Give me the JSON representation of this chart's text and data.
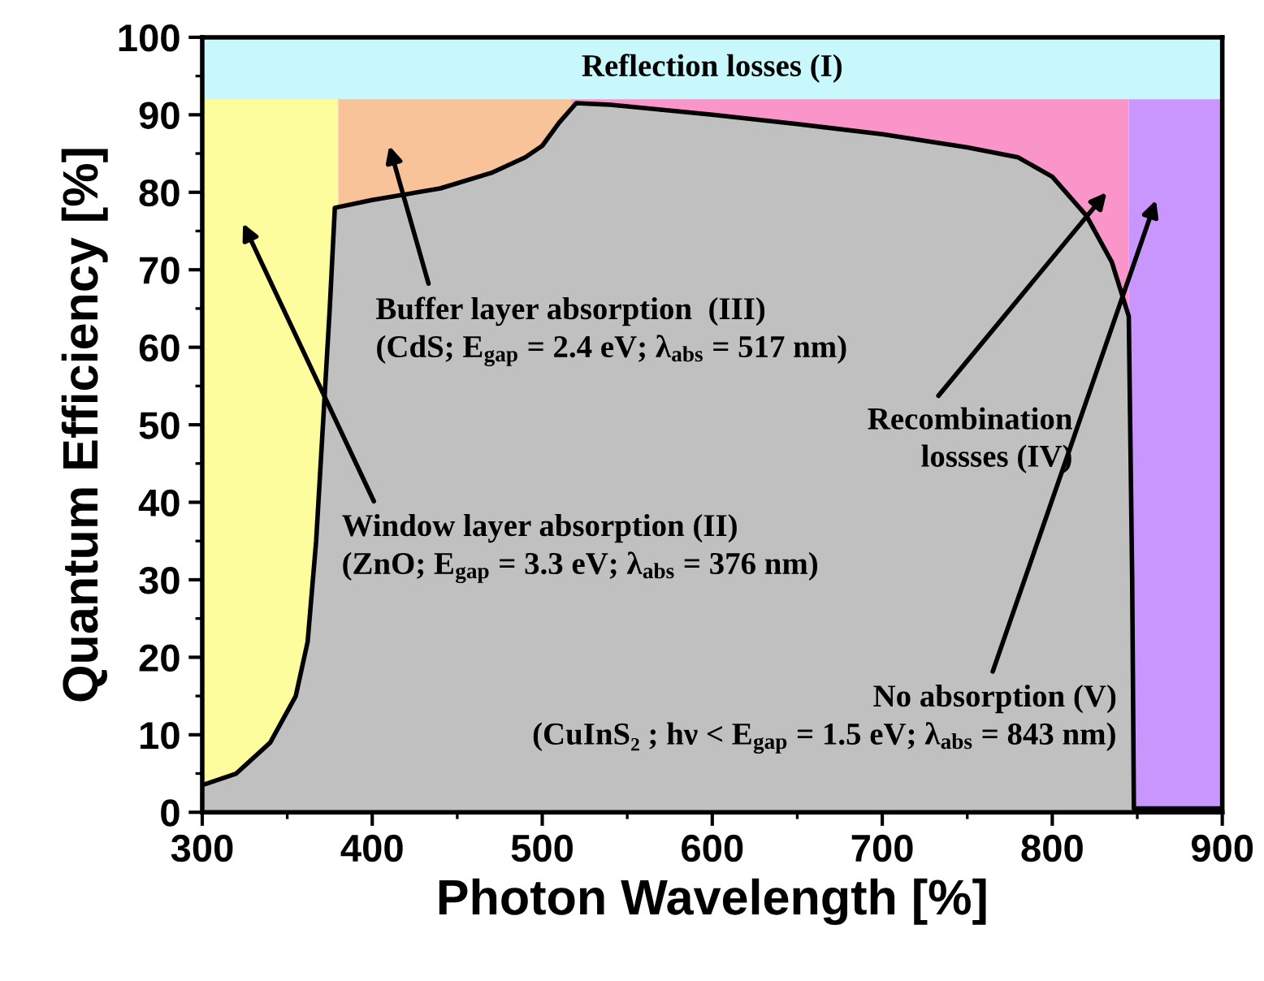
{
  "chart_data": {
    "type": "area",
    "xlabel": "Photon Wavelength [%]",
    "ylabel": "Quantum Efficiency [%]",
    "xlim": [
      300,
      900
    ],
    "xticks": [
      300,
      400,
      500,
      600,
      700,
      800,
      900
    ],
    "ylim": [
      0,
      100
    ],
    "yticks": [
      0,
      10,
      20,
      30,
      40,
      50,
      60,
      70,
      80,
      90,
      100
    ],
    "grid": false,
    "x": [
      300,
      320,
      340,
      355,
      362,
      367,
      371,
      375,
      378,
      400,
      440,
      470,
      490,
      500,
      510,
      520,
      540,
      600,
      650,
      700,
      750,
      780,
      800,
      820,
      835,
      845,
      847,
      848,
      900
    ],
    "series": [
      {
        "color": "#c0c0c0",
        "values": [
          3.5,
          5,
          9,
          15,
          22,
          35,
          50,
          65,
          78,
          79,
          80.5,
          82.5,
          84.5,
          86,
          89,
          91.5,
          91.3,
          90,
          88.8,
          87.5,
          85.8,
          84.5,
          82,
          77,
          71,
          64,
          30,
          0.5,
          0.5
        ]
      }
    ],
    "bands": [
      {
        "axis": "x",
        "from": 300,
        "to": 380,
        "color": "#fdfd9e"
      },
      {
        "axis": "x",
        "from": 380,
        "to": 517,
        "color": "#f9c39a"
      },
      {
        "axis": "x",
        "from": 517,
        "to": 845,
        "color": "#f995c8"
      },
      {
        "axis": "x",
        "from": 845,
        "to": 900,
        "color": "#c896fc"
      },
      {
        "axis": "y",
        "from": 92,
        "to": 100,
        "color": "#c8f8fc",
        "label": "Reflection losses (I)"
      }
    ],
    "annotations": [
      "Window layer absorption (II)\n(ZnO; E$_{gap}$ = 3.3 eV; λ$_{abs}$ = 376 nm)",
      "Buffer layer absorption  (III)\n(CdS; E$_{gap}$ = 2.4 eV; λ$_{abs}$ = 517 nm)",
      "Recombination\nlossses (IV)",
      "No absorption (V)\n(CuInS₂ ; hν < E$_{gap}$ = 1.5 eV; λ$_{abs}$ = 843 nm)"
    ]
  }
}
